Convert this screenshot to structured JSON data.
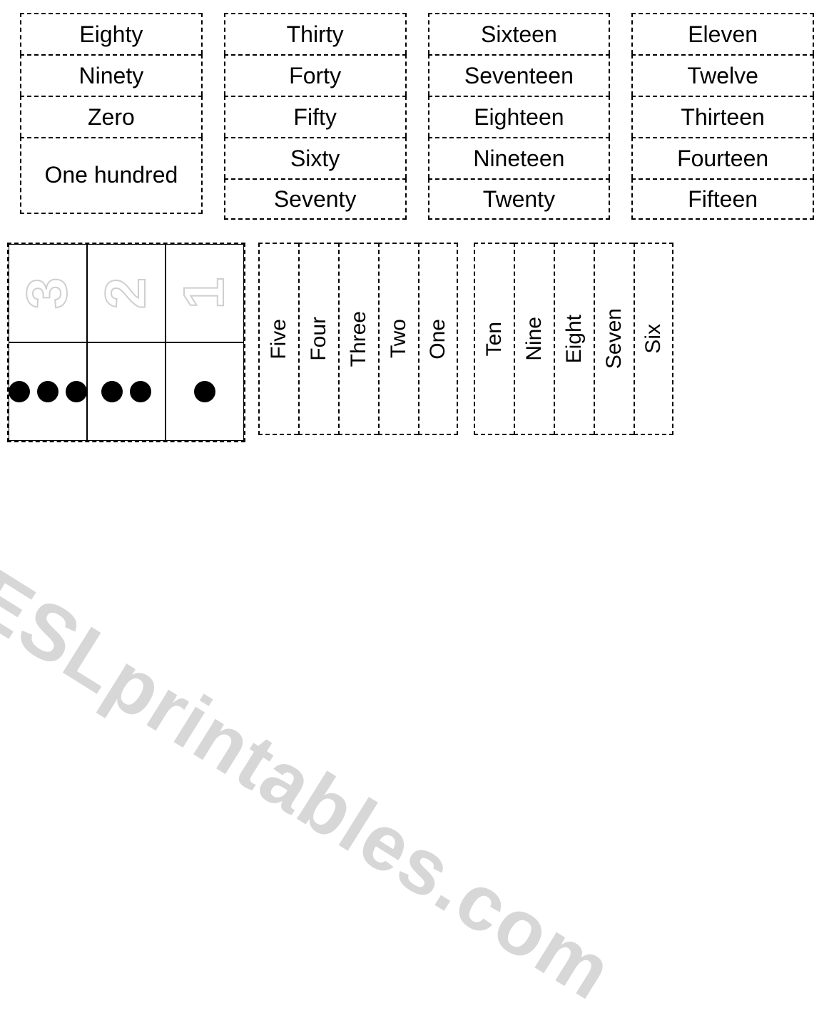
{
  "colors": {
    "background": "#ffffff",
    "text": "#000000",
    "border": "#000000",
    "watermark": "#d7d7d7",
    "outline_numeral": "#cfcfcf",
    "dot": "#000000"
  },
  "typography": {
    "font_family": "Comic Sans MS",
    "word_fontsize_pt": 24,
    "vertical_fontsize_pt": 22
  },
  "border_style": "dashed",
  "top_columns": [
    [
      "Eighty",
      "Ninety",
      "Zero",
      "One hundred"
    ],
    [
      "Thirty",
      "Forty",
      "Fifty",
      "Sixty",
      "Seventy"
    ],
    [
      "Sixteen",
      "Seventeen",
      "Eighteen",
      "Nineteen",
      "Twenty"
    ],
    [
      "Eleven",
      "Twelve",
      "Thirteen",
      "Fourteen",
      "Fifteen"
    ]
  ],
  "numeral_grid": {
    "top_row_numerals": [
      3,
      2,
      1
    ],
    "bottom_row_dots": [
      3,
      2,
      1
    ]
  },
  "vertical_strips": [
    [
      "Five",
      "Four",
      "Three",
      "Two",
      "One"
    ],
    [
      "Ten",
      "Nine",
      "Eight",
      "Seven",
      "Six"
    ]
  ],
  "watermark_text": "ESLprintables.com"
}
